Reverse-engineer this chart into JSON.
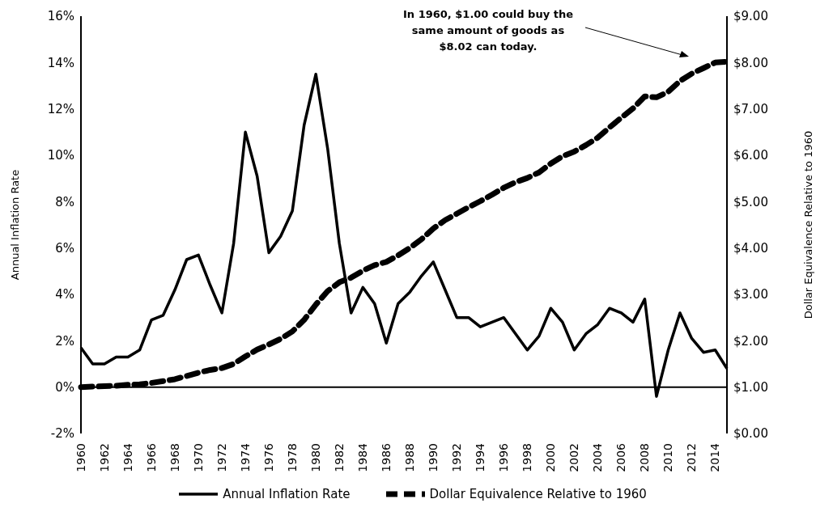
{
  "chart_data": {
    "type": "line",
    "categories": [
      "1960",
      null,
      "1962",
      null,
      "1964",
      null,
      "1966",
      null,
      "1968",
      null,
      "1970",
      null,
      "1972",
      null,
      "1974",
      null,
      "1976",
      null,
      "1978",
      null,
      "1980",
      null,
      "1982",
      null,
      "1984",
      null,
      "1986",
      null,
      "1988",
      null,
      "1990",
      null,
      "1992",
      null,
      "1994",
      null,
      "1996",
      null,
      "1998",
      null,
      "2000",
      null,
      "2002",
      null,
      "2004",
      null,
      "2006",
      null,
      "2008",
      null,
      "2010",
      null,
      "2012",
      null,
      "2014",
      null
    ],
    "series": [
      {
        "name": "Annual Inflation Rate",
        "color": "#000000",
        "line_style": "solid",
        "values": [
          1.7,
          1.0,
          1.0,
          1.3,
          1.3,
          1.6,
          2.9,
          3.1,
          4.2,
          5.5,
          5.7,
          4.4,
          3.2,
          6.2,
          11.0,
          9.1,
          5.8,
          6.5,
          7.6,
          11.3,
          13.5,
          10.3,
          6.2,
          3.2,
          4.3,
          3.6,
          1.9,
          3.6,
          4.1,
          4.8,
          5.4,
          4.2,
          3.0,
          3.0,
          2.6,
          2.8,
          3.0,
          2.3,
          1.6,
          2.2,
          3.4,
          2.8,
          1.6,
          2.3,
          2.7,
          3.4,
          3.2,
          2.8,
          3.8,
          -0.4,
          1.6,
          3.2,
          2.1,
          1.5,
          1.6,
          0.8
        ]
      },
      {
        "name": "Dollar Equivalence Relative to 1960",
        "color": "#000000",
        "line_style": "dashed",
        "axis": "y2",
        "values": [
          1.0,
          1.01,
          1.02,
          1.03,
          1.05,
          1.06,
          1.09,
          1.13,
          1.17,
          1.24,
          1.31,
          1.37,
          1.41,
          1.5,
          1.66,
          1.81,
          1.92,
          2.04,
          2.2,
          2.45,
          2.78,
          3.07,
          3.26,
          3.36,
          3.51,
          3.63,
          3.7,
          3.84,
          4.0,
          4.19,
          4.42,
          4.6,
          4.74,
          4.88,
          5.01,
          5.15,
          5.3,
          5.42,
          5.51,
          5.63,
          5.82,
          5.98,
          6.08,
          6.22,
          6.38,
          6.6,
          6.81,
          7.01,
          7.27,
          7.25,
          7.37,
          7.6,
          7.76,
          7.88,
          8.0,
          8.02
        ]
      }
    ],
    "ylabel": "Annual Inflation Rate",
    "y2label": "Dollar Equivalence Relative to 1960",
    "ylim": [
      -2,
      16
    ],
    "yticks": [
      {
        "value": -2,
        "label": "-2%"
      },
      {
        "value": 0,
        "label": "0%"
      },
      {
        "value": 2,
        "label": "2%"
      },
      {
        "value": 4,
        "label": "4%"
      },
      {
        "value": 6,
        "label": "6%"
      },
      {
        "value": 8,
        "label": "8%"
      },
      {
        "value": 10,
        "label": "10%"
      },
      {
        "value": 12,
        "label": "12%"
      },
      {
        "value": 14,
        "label": "14%"
      },
      {
        "value": 16,
        "label": "16%"
      }
    ],
    "y2lim": [
      0,
      9
    ],
    "y2ticks": [
      {
        "value": 0,
        "label": "$0.00"
      },
      {
        "value": 1,
        "label": "$1.00"
      },
      {
        "value": 2,
        "label": "$2.00"
      },
      {
        "value": 3,
        "label": "$3.00"
      },
      {
        "value": 4,
        "label": "$4.00"
      },
      {
        "value": 5,
        "label": "$5.00"
      },
      {
        "value": 6,
        "label": "$6.00"
      },
      {
        "value": 7,
        "label": "$7.00"
      },
      {
        "value": 8,
        "label": "$8.00"
      },
      {
        "value": 9,
        "label": "$9.00"
      }
    ],
    "ref_lines": [
      {
        "axis": "y",
        "value": 0,
        "color": "#000000"
      }
    ],
    "annotations": [
      "In 1960, $1.00 could buy the\nsame amount of goods as\n$8.02 can today."
    ],
    "marker": "none",
    "legend": "bottom"
  }
}
